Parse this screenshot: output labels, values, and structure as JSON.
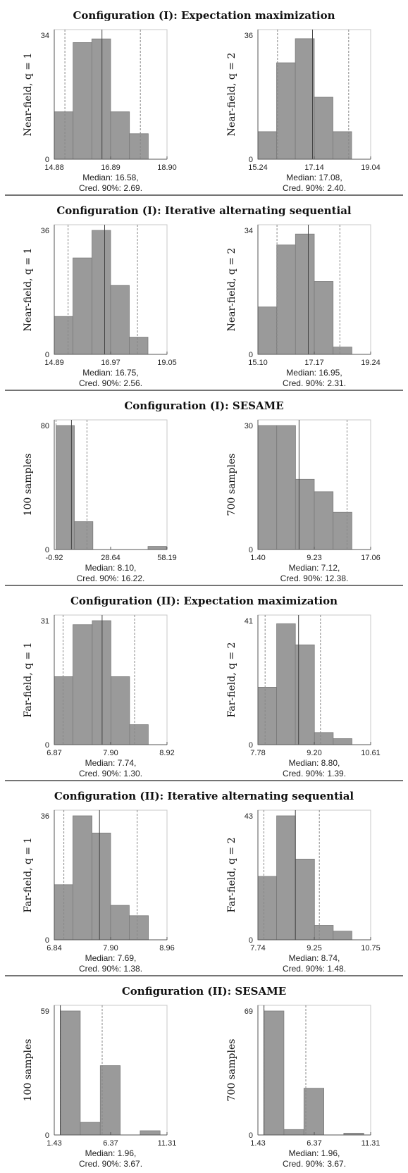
{
  "sections": [
    {
      "title": "Configuration (I): Expectation maximization",
      "panels": [
        {
          "ylabel": "Near-field, q = 1",
          "ytop": "34",
          "ybottom": "0",
          "xticks": [
            "14.88",
            "16.89",
            "18.90"
          ],
          "median_text": "Median: 16.58,",
          "cred_text": "Cred. 90%: 2.69.",
          "chart_data": {
            "type": "bar",
            "bins": [
              {
                "x0": 14.88,
                "x1": 15.55,
                "count": 13
              },
              {
                "x0": 15.55,
                "x1": 16.22,
                "count": 32
              },
              {
                "x0": 16.22,
                "x1": 16.89,
                "count": 33
              },
              {
                "x0": 16.89,
                "x1": 17.56,
                "count": 13
              },
              {
                "x0": 17.56,
                "x1": 18.23,
                "count": 7
              }
            ],
            "xlim": [
              14.88,
              18.9
            ],
            "ylim": [
              0,
              34
            ],
            "median": 16.58,
            "cred_lo": 15.26,
            "cred_hi": 17.95
          }
        },
        {
          "ylabel": "Near-field, q = 2",
          "ytop": "36",
          "ybottom": "0",
          "xticks": [
            "15.24",
            "17.14",
            "19.04"
          ],
          "median_text": "Median: 17.08,",
          "cred_text": "Cred. 90%: 2.40.",
          "chart_data": {
            "type": "bar",
            "bins": [
              {
                "x0": 15.24,
                "x1": 15.87,
                "count": 8
              },
              {
                "x0": 15.87,
                "x1": 16.5,
                "count": 28
              },
              {
                "x0": 16.5,
                "x1": 17.14,
                "count": 35
              },
              {
                "x0": 17.14,
                "x1": 17.77,
                "count": 18
              },
              {
                "x0": 17.77,
                "x1": 18.4,
                "count": 8
              }
            ],
            "xlim": [
              15.24,
              19.04
            ],
            "ylim": [
              0,
              36
            ],
            "median": 17.08,
            "cred_lo": 15.9,
            "cred_hi": 18.3
          }
        }
      ]
    },
    {
      "title": "Configuration (I): Iterative alternating sequential",
      "panels": [
        {
          "ylabel": "Near-field, q = 1",
          "ytop": "36",
          "ybottom": "0",
          "xticks": [
            "14.89",
            "16.97",
            "19.05"
          ],
          "median_text": "Median: 16.75,",
          "cred_text": "Cred. 90%: 2.56.",
          "chart_data": {
            "type": "bar",
            "bins": [
              {
                "x0": 14.89,
                "x1": 15.58,
                "count": 11
              },
              {
                "x0": 15.58,
                "x1": 16.28,
                "count": 28
              },
              {
                "x0": 16.28,
                "x1": 16.97,
                "count": 36
              },
              {
                "x0": 16.97,
                "x1": 17.66,
                "count": 20
              },
              {
                "x0": 17.66,
                "x1": 18.35,
                "count": 5
              }
            ],
            "xlim": [
              14.89,
              19.05
            ],
            "ylim": [
              0,
              36
            ],
            "median": 16.75,
            "cred_lo": 15.4,
            "cred_hi": 17.96
          }
        },
        {
          "ylabel": "Near-field, q = 2",
          "ytop": "34",
          "ybottom": "0",
          "xticks": [
            "15.10",
            "17.17",
            "19.24"
          ],
          "median_text": "Median: 16.95,",
          "cred_text": "Cred. 90%: 2.31.",
          "chart_data": {
            "type": "bar",
            "bins": [
              {
                "x0": 15.1,
                "x1": 15.79,
                "count": 13
              },
              {
                "x0": 15.79,
                "x1": 16.48,
                "count": 30
              },
              {
                "x0": 16.48,
                "x1": 17.17,
                "count": 33
              },
              {
                "x0": 17.17,
                "x1": 17.86,
                "count": 20
              },
              {
                "x0": 17.86,
                "x1": 18.55,
                "count": 2
              }
            ],
            "xlim": [
              15.1,
              19.24
            ],
            "ylim": [
              0,
              34
            ],
            "median": 16.95,
            "cred_lo": 15.8,
            "cred_hi": 18.11
          }
        }
      ]
    },
    {
      "title": "Configuration (I): SESAME",
      "panels": [
        {
          "ylabel": "100 samples",
          "ytop": "80",
          "ybottom": "0",
          "xticks": [
            "-0.92",
            "28.64",
            "58.19"
          ],
          "median_text": "Median: 8.10,",
          "cred_text": "Cred. 90%: 16.22.",
          "chart_data": {
            "type": "bar",
            "bins": [
              {
                "x0": 0.0,
                "x1": 9.6,
                "count": 80
              },
              {
                "x0": 9.6,
                "x1": 19.3,
                "count": 18
              },
              {
                "x0": 19.3,
                "x1": 28.9,
                "count": 0
              },
              {
                "x0": 28.9,
                "x1": 38.6,
                "count": 0
              },
              {
                "x0": 38.6,
                "x1": 48.2,
                "count": 0
              },
              {
                "x0": 48.2,
                "x1": 57.9,
                "count": 2
              }
            ],
            "xlim": [
              -0.92,
              58.19
            ],
            "ylim": [
              0,
              80
            ],
            "median": 8.1,
            "cred_lo": 0.0,
            "cred_hi": 16.22
          }
        },
        {
          "ylabel": "700 samples",
          "ytop": "30",
          "ybottom": "0",
          "xticks": [
            "1.40",
            "9.23",
            "17.06"
          ],
          "median_text": "Median: 7.12,",
          "cred_text": "Cred. 90%: 12.38.",
          "chart_data": {
            "type": "bar",
            "bins": [
              {
                "x0": 1.4,
                "x1": 4.01,
                "count": 30
              },
              {
                "x0": 4.01,
                "x1": 6.62,
                "count": 30
              },
              {
                "x0": 6.62,
                "x1": 9.23,
                "count": 17
              },
              {
                "x0": 9.23,
                "x1": 11.84,
                "count": 14
              },
              {
                "x0": 11.84,
                "x1": 14.45,
                "count": 9
              }
            ],
            "xlim": [
              1.4,
              17.06
            ],
            "ylim": [
              0,
              30
            ],
            "median": 7.12,
            "cred_lo": 1.4,
            "cred_hi": 13.78
          }
        }
      ]
    },
    {
      "title": "Configuration (II): Expectation maximization",
      "panels": [
        {
          "ylabel": "Far-field, q = 1",
          "ytop": "31",
          "ybottom": "0",
          "xticks": [
            "6.87",
            "7.90",
            "8.92"
          ],
          "median_text": "Median: 7.74,",
          "cred_text": "Cred. 90%: 1.30.",
          "chart_data": {
            "type": "bar",
            "bins": [
              {
                "x0": 6.87,
                "x1": 7.21,
                "count": 17
              },
              {
                "x0": 7.21,
                "x1": 7.56,
                "count": 30
              },
              {
                "x0": 7.56,
                "x1": 7.9,
                "count": 31
              },
              {
                "x0": 7.9,
                "x1": 8.24,
                "count": 17
              },
              {
                "x0": 8.24,
                "x1": 8.58,
                "count": 5
              }
            ],
            "xlim": [
              6.87,
              8.92
            ],
            "ylim": [
              0,
              31
            ],
            "median": 7.74,
            "cred_lo": 7.03,
            "cred_hi": 8.33
          }
        },
        {
          "ylabel": "Far-field, q = 2",
          "ytop": "41",
          "ybottom": "0",
          "xticks": [
            "7.78",
            "9.20",
            "10.61"
          ],
          "median_text": "Median: 8.80,",
          "cred_text": "Cred. 90%: 1.39.",
          "chart_data": {
            "type": "bar",
            "bins": [
              {
                "x0": 7.78,
                "x1": 8.25,
                "count": 19
              },
              {
                "x0": 8.25,
                "x1": 8.72,
                "count": 40
              },
              {
                "x0": 8.72,
                "x1": 9.2,
                "count": 33
              },
              {
                "x0": 9.2,
                "x1": 9.67,
                "count": 4
              },
              {
                "x0": 9.67,
                "x1": 10.14,
                "count": 2
              }
            ],
            "xlim": [
              7.78,
              10.61
            ],
            "ylim": [
              0,
              41
            ],
            "median": 8.8,
            "cred_lo": 7.96,
            "cred_hi": 9.35
          }
        }
      ]
    },
    {
      "title": "Configuration (II): Iterative alternating sequential",
      "panels": [
        {
          "ylabel": "Far-field, q = 1",
          "ytop": "36",
          "ybottom": "0",
          "xticks": [
            "6.84",
            "7.90",
            "8.96"
          ],
          "median_text": "Median: 7.69,",
          "cred_text": "Cred. 90%: 1.38.",
          "chart_data": {
            "type": "bar",
            "bins": [
              {
                "x0": 6.84,
                "x1": 7.19,
                "count": 16
              },
              {
                "x0": 7.19,
                "x1": 7.55,
                "count": 36
              },
              {
                "x0": 7.55,
                "x1": 7.9,
                "count": 31
              },
              {
                "x0": 7.9,
                "x1": 8.25,
                "count": 10
              },
              {
                "x0": 8.25,
                "x1": 8.61,
                "count": 7
              }
            ],
            "xlim": [
              6.84,
              8.96
            ],
            "ylim": [
              0,
              36
            ],
            "median": 7.69,
            "cred_lo": 7.02,
            "cred_hi": 8.4
          }
        },
        {
          "ylabel": "Far-field, q = 2",
          "ytop": "43",
          "ybottom": "0",
          "xticks": [
            "7.74",
            "9.25",
            "10.75"
          ],
          "median_text": "Median: 8.74,",
          "cred_text": "Cred. 90%: 1.48.",
          "chart_data": {
            "type": "bar",
            "bins": [
              {
                "x0": 7.74,
                "x1": 8.24,
                "count": 22
              },
              {
                "x0": 8.24,
                "x1": 8.74,
                "count": 43
              },
              {
                "x0": 8.74,
                "x1": 9.25,
                "count": 28
              },
              {
                "x0": 9.25,
                "x1": 9.75,
                "count": 5
              },
              {
                "x0": 9.75,
                "x1": 10.25,
                "count": 3
              }
            ],
            "xlim": [
              7.74,
              10.75
            ],
            "ylim": [
              0,
              43
            ],
            "median": 8.74,
            "cred_lo": 7.9,
            "cred_hi": 9.38
          }
        }
      ]
    },
    {
      "title": "Configuration (II): SESAME",
      "panels": [
        {
          "ylabel": "100 samples",
          "ytop": "59",
          "ybottom": "0",
          "xticks": [
            "1.43",
            "6.37",
            "11.31"
          ],
          "median_text": "Median: 1.96,",
          "cred_text": "Cred. 90%: 3.67.",
          "chart_data": {
            "type": "bar",
            "bins": [
              {
                "x0": 1.96,
                "x1": 3.71,
                "count": 59
              },
              {
                "x0": 3.71,
                "x1": 5.46,
                "count": 6
              },
              {
                "x0": 5.46,
                "x1": 7.21,
                "count": 33
              },
              {
                "x0": 7.21,
                "x1": 8.96,
                "count": 0
              },
              {
                "x0": 8.96,
                "x1": 10.71,
                "count": 2
              }
            ],
            "xlim": [
              1.43,
              11.31
            ],
            "ylim": [
              0,
              59
            ],
            "median": 1.96,
            "cred_lo": 1.96,
            "cred_hi": 5.63
          }
        },
        {
          "ylabel": "700 samples",
          "ytop": "69",
          "ybottom": "0",
          "xticks": [
            "1.43",
            "6.37",
            "11.31"
          ],
          "median_text": "Median: 1.96,",
          "cred_text": "Cred. 90%: 3.67.",
          "chart_data": {
            "type": "bar",
            "bins": [
              {
                "x0": 1.96,
                "x1": 3.71,
                "count": 69
              },
              {
                "x0": 3.71,
                "x1": 5.46,
                "count": 3
              },
              {
                "x0": 5.46,
                "x1": 7.21,
                "count": 26
              },
              {
                "x0": 7.21,
                "x1": 8.96,
                "count": 0
              },
              {
                "x0": 8.96,
                "x1": 10.71,
                "count": 1
              }
            ],
            "xlim": [
              1.43,
              11.31
            ],
            "ylim": [
              0,
              69
            ],
            "median": 1.96,
            "cred_lo": 1.96,
            "cred_hi": 5.63
          }
        }
      ]
    }
  ]
}
